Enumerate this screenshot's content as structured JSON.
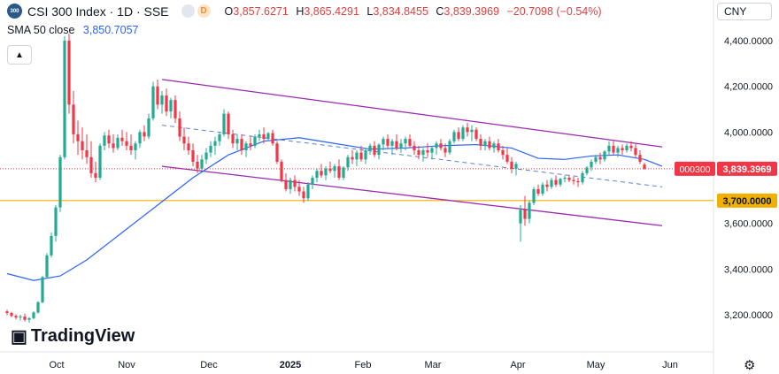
{
  "header": {
    "symbol_badge": "300",
    "title": "CSI 300 Index · 1D · SSE",
    "delayed_badge": "D",
    "ohlc": {
      "o_label": "O",
      "o_value": "3,857.6271",
      "h_label": "H",
      "h_value": "3,865.4291",
      "l_label": "L",
      "l_value": "3,834.8455",
      "c_label": "C",
      "c_value": "3,839.3969",
      "change": "−20.7098 (−0.54%)"
    }
  },
  "indicator": {
    "label": "SMA 50 close",
    "value": "3,850.7057"
  },
  "currency_button": "CNY",
  "logo_text": "TradingView",
  "colors": {
    "up": "#22ab94",
    "down": "#f23645",
    "sma": "#2962ff",
    "channel": "#9c27b0",
    "level": "#f0b000",
    "price_label_bg": "#f23645"
  },
  "price_labels": {
    "symbol_code": "000300",
    "last_price": "3,839.3969",
    "level_price": "3,700.0000"
  },
  "chart_data": {
    "type": "candlestick",
    "y_axis": {
      "ticks": [
        "4,400.0000",
        "4,200.0000",
        "4,000.0000",
        "3,600.0000",
        "3,400.0000",
        "3,200.0000"
      ],
      "range": [
        3130,
        4480
      ]
    },
    "x_axis": {
      "ticks": [
        "Oct",
        "Nov",
        "Dec",
        "2025",
        "Feb",
        "Mar",
        "Apr",
        "May",
        "Jun"
      ]
    },
    "last_close": 3839.3969,
    "horizontal_level": 3700,
    "candles": [
      [
        3215,
        3222,
        3198,
        3208
      ],
      [
        3208,
        3212,
        3190,
        3195
      ],
      [
        3195,
        3202,
        3180,
        3188
      ],
      [
        3188,
        3200,
        3175,
        3192
      ],
      [
        3192,
        3205,
        3170,
        3178
      ],
      [
        3178,
        3190,
        3165,
        3185
      ],
      [
        3185,
        3215,
        3180,
        3210
      ],
      [
        3210,
        3260,
        3205,
        3255
      ],
      [
        3255,
        3370,
        3250,
        3365
      ],
      [
        3365,
        3470,
        3360,
        3460
      ],
      [
        3460,
        3560,
        3450,
        3545
      ],
      [
        3545,
        3680,
        3520,
        3670
      ],
      [
        3670,
        3900,
        3650,
        3890
      ],
      [
        3890,
        4420,
        3880,
        4400
      ],
      [
        4400,
        4430,
        4080,
        4120
      ],
      [
        4120,
        4180,
        3950,
        3990
      ],
      [
        3990,
        4050,
        3900,
        3960
      ],
      [
        3960,
        4020,
        3880,
        3920
      ],
      [
        3920,
        3990,
        3860,
        3890
      ],
      [
        3890,
        3960,
        3800,
        3820
      ],
      [
        3820,
        3870,
        3780,
        3800
      ],
      [
        3800,
        3950,
        3790,
        3940
      ],
      [
        3940,
        4000,
        3920,
        3985
      ],
      [
        3985,
        4010,
        3930,
        3950
      ],
      [
        3950,
        3990,
        3910,
        3930
      ],
      [
        3930,
        3990,
        3920,
        3975
      ],
      [
        3975,
        4010,
        3940,
        3960
      ],
      [
        3960,
        4000,
        3920,
        3940
      ],
      [
        3940,
        3990,
        3900,
        3920
      ],
      [
        3920,
        3960,
        3880,
        3950
      ],
      [
        3950,
        4010,
        3930,
        4000
      ],
      [
        4000,
        4030,
        3960,
        3980
      ],
      [
        3980,
        4080,
        3970,
        4060
      ],
      [
        4060,
        4220,
        4050,
        4200
      ],
      [
        4200,
        4230,
        4100,
        4120
      ],
      [
        4120,
        4180,
        4080,
        4160
      ],
      [
        4160,
        4190,
        4070,
        4090
      ],
      [
        4090,
        4150,
        4060,
        4140
      ],
      [
        4140,
        4160,
        4040,
        4060
      ],
      [
        4060,
        4090,
        3960,
        3980
      ],
      [
        3980,
        4020,
        3920,
        3950
      ],
      [
        3950,
        3980,
        3900,
        3920
      ],
      [
        3920,
        3950,
        3850,
        3870
      ],
      [
        3870,
        3900,
        3820,
        3840
      ],
      [
        3840,
        3900,
        3830,
        3880
      ],
      [
        3880,
        3930,
        3860,
        3910
      ],
      [
        3910,
        3960,
        3890,
        3940
      ],
      [
        3940,
        3980,
        3900,
        3960
      ],
      [
        3960,
        4000,
        3940,
        3990
      ],
      [
        3990,
        4100,
        3980,
        4080
      ],
      [
        4080,
        4090,
        3970,
        3990
      ],
      [
        3990,
        4010,
        3930,
        3950
      ],
      [
        3950,
        3990,
        3920,
        3970
      ],
      [
        3970,
        3990,
        3900,
        3920
      ],
      [
        3920,
        3960,
        3890,
        3950
      ],
      [
        3950,
        3980,
        3920,
        3940
      ],
      [
        3940,
        3990,
        3930,
        3980
      ],
      [
        3980,
        4010,
        3960,
        3990
      ],
      [
        3990,
        4020,
        3950,
        3970
      ],
      [
        3970,
        4000,
        3960,
        3995
      ],
      [
        3995,
        4010,
        3940,
        3950
      ],
      [
        3950,
        3960,
        3860,
        3870
      ],
      [
        3870,
        3880,
        3780,
        3790
      ],
      [
        3790,
        3820,
        3740,
        3750
      ],
      [
        3750,
        3800,
        3730,
        3790
      ],
      [
        3790,
        3810,
        3740,
        3760
      ],
      [
        3760,
        3790,
        3720,
        3740
      ],
      [
        3740,
        3760,
        3690,
        3710
      ],
      [
        3710,
        3780,
        3700,
        3770
      ],
      [
        3770,
        3810,
        3750,
        3800
      ],
      [
        3800,
        3840,
        3780,
        3830
      ],
      [
        3830,
        3860,
        3800,
        3810
      ],
      [
        3810,
        3850,
        3790,
        3840
      ],
      [
        3840,
        3870,
        3820,
        3830
      ],
      [
        3830,
        3860,
        3800,
        3850
      ],
      [
        3850,
        3880,
        3790,
        3800
      ],
      [
        3800,
        3850,
        3790,
        3845
      ],
      [
        3845,
        3900,
        3830,
        3890
      ],
      [
        3890,
        3920,
        3860,
        3880
      ],
      [
        3880,
        3920,
        3850,
        3910
      ],
      [
        3910,
        3940,
        3870,
        3880
      ],
      [
        3880,
        3930,
        3860,
        3920
      ],
      [
        3920,
        3950,
        3900,
        3940
      ],
      [
        3940,
        3960,
        3890,
        3900
      ],
      [
        3900,
        3950,
        3880,
        3945
      ],
      [
        3945,
        3980,
        3920,
        3970
      ],
      [
        3970,
        3990,
        3930,
        3940
      ],
      [
        3940,
        3970,
        3900,
        3960
      ],
      [
        3960,
        3990,
        3920,
        3930
      ],
      [
        3930,
        3970,
        3910,
        3950
      ],
      [
        3950,
        3980,
        3920,
        3970
      ],
      [
        3970,
        3990,
        3930,
        3940
      ],
      [
        3940,
        3960,
        3900,
        3920
      ],
      [
        3920,
        3940,
        3880,
        3900
      ],
      [
        3900,
        3930,
        3870,
        3920
      ],
      [
        3920,
        3950,
        3890,
        3910
      ],
      [
        3910,
        3940,
        3880,
        3930
      ],
      [
        3930,
        3960,
        3900,
        3950
      ],
      [
        3950,
        3970,
        3920,
        3930
      ],
      [
        3930,
        3950,
        3890,
        3910
      ],
      [
        3910,
        3970,
        3900,
        3960
      ],
      [
        3960,
        4010,
        3950,
        4000
      ],
      [
        4000,
        4020,
        3960,
        3970
      ],
      [
        3970,
        4030,
        3960,
        4020
      ],
      [
        4020,
        4040,
        3980,
        4000
      ],
      [
        4000,
        4030,
        3960,
        4010
      ],
      [
        4010,
        4020,
        3960,
        3970
      ],
      [
        3970,
        3990,
        3920,
        3940
      ],
      [
        3940,
        3970,
        3920,
        3960
      ],
      [
        3960,
        3980,
        3920,
        3930
      ],
      [
        3930,
        3960,
        3910,
        3950
      ],
      [
        3950,
        3970,
        3910,
        3920
      ],
      [
        3920,
        3940,
        3880,
        3900
      ],
      [
        3900,
        3930,
        3860,
        3870
      ],
      [
        3870,
        3890,
        3820,
        3840
      ],
      [
        3840,
        3870,
        3810,
        3860
      ],
      [
        3600,
        3680,
        3520,
        3660
      ],
      [
        3660,
        3720,
        3590,
        3620
      ],
      [
        3620,
        3700,
        3600,
        3690
      ],
      [
        3690,
        3760,
        3680,
        3750
      ],
      [
        3750,
        3770,
        3720,
        3730
      ],
      [
        3730,
        3780,
        3720,
        3770
      ],
      [
        3770,
        3790,
        3740,
        3760
      ],
      [
        3760,
        3800,
        3750,
        3790
      ],
      [
        3790,
        3810,
        3760,
        3770
      ],
      [
        3770,
        3800,
        3760,
        3795
      ],
      [
        3795,
        3810,
        3780,
        3800
      ],
      [
        3800,
        3810,
        3780,
        3790
      ],
      [
        3790,
        3805,
        3770,
        3785
      ],
      [
        3785,
        3800,
        3760,
        3780
      ],
      [
        3780,
        3830,
        3770,
        3820
      ],
      [
        3820,
        3850,
        3810,
        3845
      ],
      [
        3845,
        3880,
        3830,
        3870
      ],
      [
        3870,
        3900,
        3860,
        3890
      ],
      [
        3890,
        3910,
        3860,
        3880
      ],
      [
        3880,
        3920,
        3870,
        3915
      ],
      [
        3915,
        3960,
        3900,
        3940
      ],
      [
        3940,
        3960,
        3900,
        3910
      ],
      [
        3910,
        3940,
        3890,
        3930
      ],
      [
        3930,
        3945,
        3900,
        3920
      ],
      [
        3920,
        3950,
        3910,
        3940
      ],
      [
        3940,
        3960,
        3915,
        3930
      ],
      [
        3930,
        3950,
        3890,
        3900
      ],
      [
        3900,
        3920,
        3860,
        3870
      ],
      [
        3857.6271,
        3865.4291,
        3834.8455,
        3839.3969
      ]
    ],
    "sma50": [
      [
        0,
        3380
      ],
      [
        6,
        3350
      ],
      [
        12,
        3370
      ],
      [
        18,
        3440
      ],
      [
        26,
        3560
      ],
      [
        34,
        3680
      ],
      [
        42,
        3800
      ],
      [
        50,
        3900
      ],
      [
        58,
        3960
      ],
      [
        66,
        3975
      ],
      [
        74,
        3950
      ],
      [
        82,
        3925
      ],
      [
        90,
        3930
      ],
      [
        98,
        3940
      ],
      [
        106,
        3945
      ],
      [
        114,
        3930
      ],
      [
        120,
        3885
      ],
      [
        126,
        3880
      ],
      [
        132,
        3895
      ],
      [
        138,
        3900
      ],
      [
        144,
        3880
      ],
      [
        148,
        3850
      ]
    ],
    "channel_upper": [
      [
        35,
        4230
      ],
      [
        148,
        3935
      ]
    ],
    "channel_lower": [
      [
        35,
        3850
      ],
      [
        148,
        3590
      ]
    ],
    "midline": [
      [
        35,
        4030
      ],
      [
        148,
        3760
      ]
    ]
  }
}
